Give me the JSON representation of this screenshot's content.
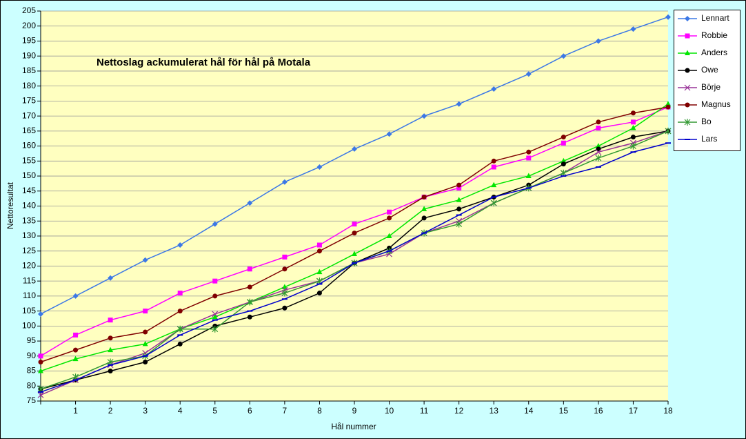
{
  "chart_data": {
    "type": "line",
    "title": "Nettoslag ackumulerat hål för hål på Motala",
    "x_label": "Hål nummer",
    "y_label": "Nettoresultat",
    "categories": [
      null,
      "1",
      "2",
      "3",
      "4",
      "5",
      "6",
      "7",
      "8",
      "9",
      "10",
      "11",
      "12",
      "13",
      "14",
      "15",
      "16",
      "17",
      "18"
    ],
    "ylim": [
      75,
      205
    ],
    "yticks": [
      75,
      80,
      85,
      90,
      95,
      100,
      105,
      110,
      115,
      120,
      125,
      130,
      135,
      140,
      145,
      150,
      155,
      160,
      165,
      170,
      175,
      180,
      185,
      190,
      195,
      200,
      205
    ],
    "grid": true,
    "legend": "right",
    "series": [
      {
        "name": "Lennart",
        "color": "#3c78e6",
        "marker": "diamond",
        "values": [
          104,
          110,
          116,
          122,
          127,
          134,
          141,
          148,
          153,
          159,
          164,
          170,
          174,
          179,
          184,
          190,
          195,
          199,
          203
        ]
      },
      {
        "name": "Robbie",
        "color": "#ff00ff",
        "marker": "square",
        "values": [
          90,
          97,
          102,
          105,
          111,
          115,
          119,
          123,
          127,
          134,
          138,
          143,
          146,
          153,
          156,
          161,
          166,
          168,
          173
        ]
      },
      {
        "name": "Anders",
        "color": "#00e600",
        "marker": "triangle",
        "values": [
          85,
          89,
          92,
          94,
          99,
          103,
          108,
          113,
          118,
          124,
          130,
          139,
          142,
          147,
          150,
          155,
          160,
          166,
          174
        ]
      },
      {
        "name": "Owe",
        "color": "#000000",
        "marker": "circle",
        "values": [
          79,
          82,
          85,
          88,
          94,
          100,
          103,
          106,
          111,
          121,
          126,
          136,
          139,
          143,
          147,
          154,
          159,
          163,
          165
        ]
      },
      {
        "name": "Börje",
        "color": "#993399",
        "marker": "x",
        "values": [
          77,
          82,
          87,
          91,
          99,
          104,
          108,
          112,
          115,
          121,
          124,
          131,
          135,
          141,
          146,
          151,
          158,
          161,
          165
        ]
      },
      {
        "name": "Magnus",
        "color": "#800000",
        "marker": "circle",
        "values": [
          88,
          92,
          96,
          98,
          105,
          110,
          113,
          119,
          125,
          131,
          136,
          143,
          147,
          155,
          158,
          163,
          168,
          171,
          173
        ]
      },
      {
        "name": "Bo",
        "color": "#339933",
        "marker": "star",
        "values": [
          79,
          83,
          88,
          90,
          99,
          99,
          108,
          111,
          115,
          121,
          125,
          131,
          134,
          141,
          146,
          151,
          156,
          160,
          165
        ]
      },
      {
        "name": "Lars",
        "color": "#0000cc",
        "marker": "dash",
        "values": [
          78,
          82,
          87,
          90,
          97,
          102,
          105,
          109,
          114,
          121,
          125,
          131,
          137,
          143,
          146,
          150,
          153,
          158,
          161
        ]
      }
    ]
  }
}
